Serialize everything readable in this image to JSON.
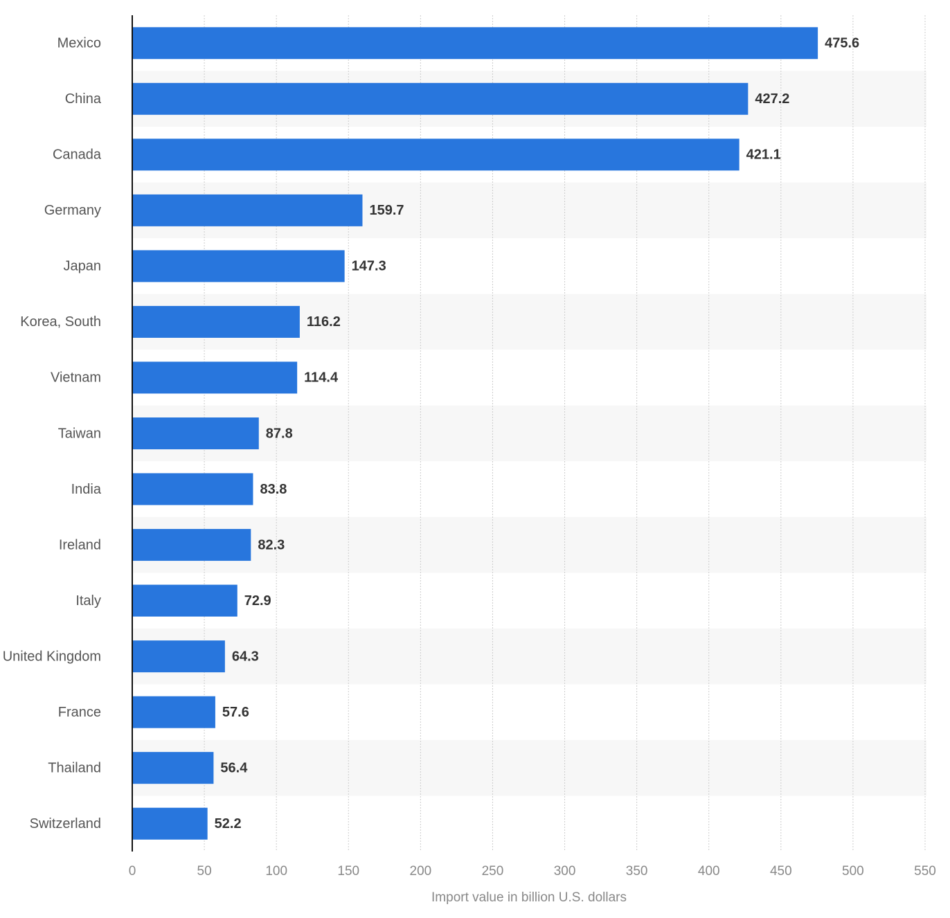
{
  "chart_data": {
    "type": "bar",
    "orientation": "horizontal",
    "x_label": "Import value in billion U.S. dollars",
    "categories": [
      "Mexico",
      "China",
      "Canada",
      "Germany",
      "Japan",
      "Korea, South",
      "Vietnam",
      "Taiwan",
      "India",
      "Ireland",
      "Italy",
      "United Kingdom",
      "France",
      "Thailand",
      "Switzerland"
    ],
    "values": [
      475.6,
      427.2,
      421.1,
      159.7,
      147.3,
      116.2,
      114.4,
      87.8,
      83.8,
      82.3,
      72.9,
      64.3,
      57.6,
      56.4,
      52.2
    ],
    "color": "#2876dd",
    "xlim": [
      0,
      550
    ],
    "xticks": [
      0,
      50,
      100,
      150,
      200,
      250,
      300,
      350,
      400,
      450,
      500,
      550
    ],
    "grid": true
  }
}
